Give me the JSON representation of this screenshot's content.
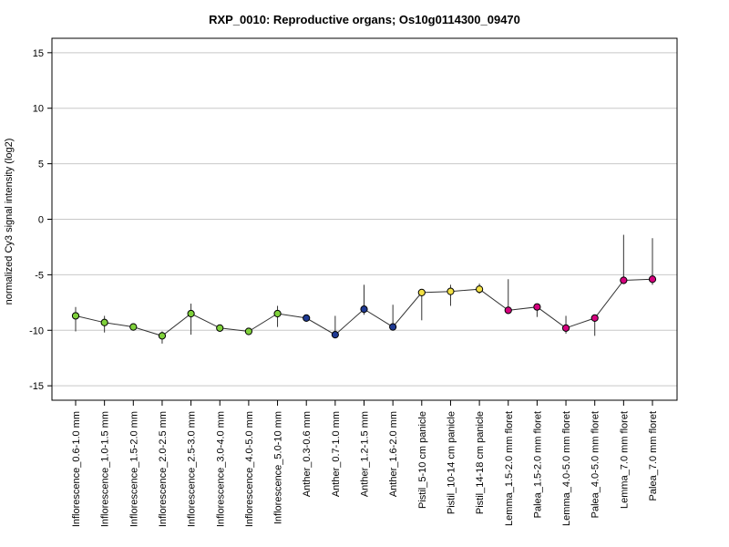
{
  "chart_data": {
    "type": "line",
    "title": "RXP_0010: Reproductive organs; Os10g0114300_09470",
    "xlabel": "",
    "ylabel": "normalized Cy3 signal intensity (log2)",
    "ylim": [
      -16.3,
      16.3
    ],
    "yticks": [
      -15,
      -10,
      -5,
      0,
      5,
      10,
      15
    ],
    "grid": true,
    "categories": [
      "Inflorescence_0.6-1.0 mm",
      "Inflorescence_1.0-1.5 mm",
      "Inflorescence_1.5-2.0 mm",
      "Inflorescence_2.0-2.5 mm",
      "Inflorescence_2.5-3.0 mm",
      "Inflorescence_3.0-4.0 mm",
      "Inflorescence_4.0-5.0 mm",
      "Inflorescence_5.0-10 mm",
      "Anther_0.3-0.6 mm",
      "Anther_0.7-1.0 mm",
      "Anther_1.2-1.5 mm",
      "Anther_1.6-2.0 mm",
      "Pistil_5-10 cm panicle",
      "Pistil_10-14 cm panicle",
      "Pistil_14-18 cm panicle",
      "Lemma_1.5-2.0 mm floret",
      "Palea_1.5-2.0 mm floret",
      "Lemma_4.0-5.0 mm floret",
      "Palea_4.0-5.0 mm floret",
      "Lemma_7.0 mm floret",
      "Palea_7.0 mm floret"
    ],
    "values": [
      -8.7,
      -9.3,
      -9.7,
      -10.5,
      -8.5,
      -9.8,
      -10.1,
      -8.5,
      -8.9,
      -10.4,
      -8.1,
      -9.7,
      -6.6,
      -6.5,
      -6.3,
      -8.2,
      -7.9,
      -9.8,
      -8.9,
      -5.5,
      -5.4
    ],
    "error_low": [
      -10.1,
      -10.2,
      -10.0,
      -11.2,
      -10.4,
      -10.0,
      -10.2,
      -9.7,
      -9.2,
      -10.5,
      -8.6,
      -9.8,
      -9.1,
      -7.8,
      -6.7,
      -8.3,
      -8.8,
      -10.3,
      -10.5,
      -5.6,
      -5.9
    ],
    "error_high": [
      -7.9,
      -8.7,
      -9.5,
      -10.1,
      -7.6,
      -9.6,
      -9.9,
      -7.8,
      -8.7,
      -8.7,
      -5.9,
      -7.7,
      -6.5,
      -5.9,
      -5.8,
      -5.4,
      -7.8,
      -8.7,
      -8.7,
      -1.4,
      -1.7
    ],
    "point_colors": [
      "#7fd13b",
      "#7fd13b",
      "#7fd13b",
      "#7fd13b",
      "#7fd13b",
      "#7fd13b",
      "#7fd13b",
      "#7fd13b",
      "#1f3a93",
      "#1f3a93",
      "#1f3a93",
      "#1f3a93",
      "#f2e045",
      "#f2e045",
      "#f2e045",
      "#d6007e",
      "#d6007e",
      "#d6007e",
      "#d6007e",
      "#d6007e",
      "#d6007e"
    ],
    "line_color": "#333333",
    "grid_color": "#c8c8c8"
  }
}
